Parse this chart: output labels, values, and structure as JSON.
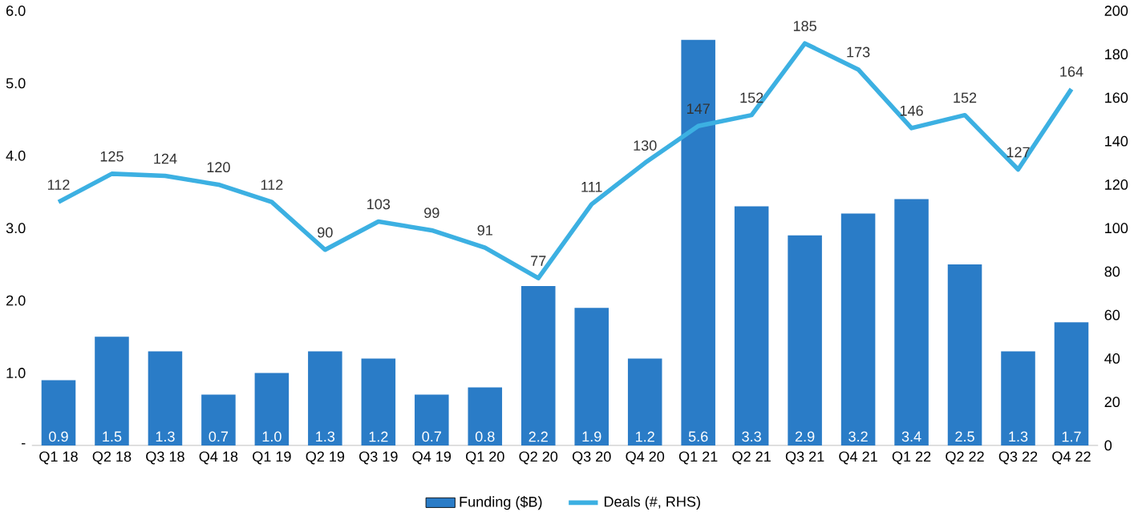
{
  "chart_data": {
    "type": "bar",
    "categories": [
      "Q1 18",
      "Q2 18",
      "Q3 18",
      "Q4 18",
      "Q1 19",
      "Q2 19",
      "Q3 19",
      "Q4 19",
      "Q1 20",
      "Q2 20",
      "Q3 20",
      "Q4 20",
      "Q1 21",
      "Q2 21",
      "Q3 21",
      "Q4 21",
      "Q1 22",
      "Q2 22",
      "Q3 22",
      "Q4 22"
    ],
    "series": [
      {
        "name": "Funding ($B)",
        "color": "#2a7cc7",
        "values": [
          0.9,
          1.5,
          1.3,
          0.7,
          1.0,
          1.3,
          1.2,
          0.7,
          0.8,
          2.2,
          1.9,
          1.2,
          5.6,
          3.3,
          2.9,
          3.2,
          3.4,
          2.5,
          1.3,
          1.7
        ],
        "value_labels": [
          "0.9",
          "1.5",
          "1.3",
          "0.7",
          "1.0",
          "1.3",
          "1.2",
          "0.7",
          "0.8",
          "2.2",
          "1.9",
          "1.2",
          "5.6",
          "3.3",
          "2.9",
          "3.2",
          "3.4",
          "2.5",
          "1.3",
          "1.7"
        ]
      },
      {
        "name": "Deals (#, RHS)",
        "type": "line",
        "axis": "y2",
        "color": "#3cb0e2",
        "values": [
          112,
          125,
          124,
          120,
          112,
          90,
          103,
          99,
          91,
          77,
          111,
          130,
          147,
          152,
          185,
          173,
          146,
          152,
          127,
          164
        ],
        "value_labels": [
          "112",
          "125",
          "124",
          "120",
          "112",
          "90",
          "103",
          "99",
          "91",
          "77",
          "111",
          "130",
          "147",
          "152",
          "185",
          "173",
          "146",
          "152",
          "127",
          "164"
        ]
      }
    ],
    "ylim": [
      0,
      6
    ],
    "yticks": [
      {
        "value": 0,
        "label": "-"
      },
      {
        "value": 1,
        "label": "1.0"
      },
      {
        "value": 2,
        "label": "2.0"
      },
      {
        "value": 3,
        "label": "3.0"
      },
      {
        "value": 4,
        "label": "4.0"
      },
      {
        "value": 5,
        "label": "5.0"
      },
      {
        "value": 6,
        "label": "6.0"
      }
    ],
    "y2lim": [
      0,
      200
    ],
    "y2ticks": [
      0,
      20,
      40,
      60,
      80,
      100,
      120,
      140,
      160,
      180,
      200
    ],
    "grid": false,
    "legend": "bottom"
  }
}
